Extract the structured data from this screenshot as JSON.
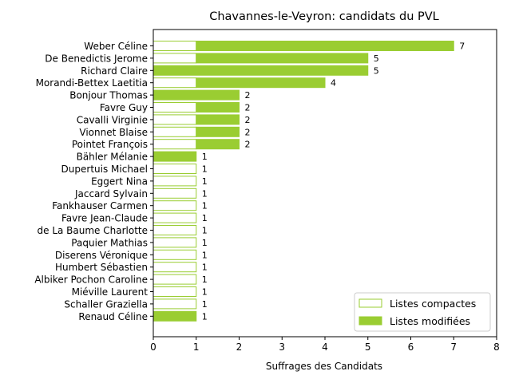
{
  "chart_data": {
    "type": "bar",
    "orientation": "horizontal",
    "stacked": true,
    "title": "Chavannes-le-Veyron: candidats du PVL",
    "xlabel": "Suffrages des Candidats",
    "ylabel": "",
    "xlim": [
      0,
      8
    ],
    "xticks": [
      "0",
      "1",
      "2",
      "3",
      "4",
      "5",
      "6",
      "7",
      "8"
    ],
    "grid": false,
    "legend_position": "bottom-right",
    "colors": {
      "bar": "#9acd32",
      "bar_edge": "#9acd32",
      "background": "#ffffff"
    },
    "categories": [
      "Weber Céline",
      "De Benedictis Jerome",
      "Richard Claire",
      "Morandi-Bettex Laetitia",
      "Bonjour Thomas",
      "Favre Guy",
      "Cavalli Virginie",
      "Vionnet Blaise",
      "Pointet François",
      "Bähler Mélanie",
      "Dupertuis Michael",
      "Eggert Nina",
      "Jaccard Sylvain",
      "Fankhauser Carmen",
      "Favre Jean-Claude",
      "de La Baume Charlotte",
      "Paquier Mathias",
      "Diserens Véronique",
      "Humbert Sébastien",
      "Albiker Pochon Caroline",
      "Miéville Laurent",
      "Schaller Graziella",
      "Renaud Céline"
    ],
    "series": [
      {
        "name": "Listes compactes",
        "style": "outline",
        "values": [
          1,
          1,
          0,
          1,
          0,
          1,
          1,
          1,
          1,
          0,
          1,
          1,
          1,
          1,
          1,
          1,
          1,
          1,
          1,
          1,
          1,
          1,
          0
        ]
      },
      {
        "name": "Listes modifiées",
        "style": "filled",
        "values": [
          6,
          4,
          5,
          3,
          2,
          1,
          1,
          1,
          1,
          1,
          0,
          0,
          0,
          0,
          0,
          0,
          0,
          0,
          0,
          0,
          0,
          0,
          1
        ]
      }
    ],
    "totals": [
      "7",
      "5",
      "5",
      "4",
      "2",
      "2",
      "2",
      "2",
      "2",
      "1",
      "1",
      "1",
      "1",
      "1",
      "1",
      "1",
      "1",
      "1",
      "1",
      "1",
      "1",
      "1",
      "1"
    ]
  }
}
